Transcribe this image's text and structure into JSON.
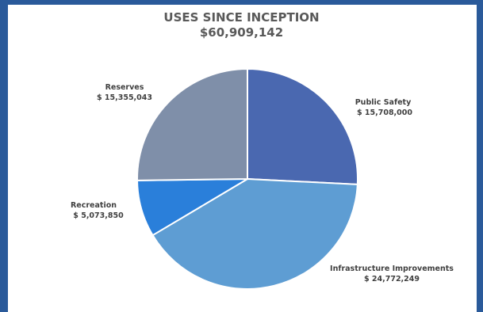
{
  "chart_data": {
    "type": "pie",
    "title": "USES SINCE INCEPTION",
    "subtitle": "$60,909,142",
    "slices": [
      {
        "label": "Public Safety",
        "value_label": "$ 15,708,000",
        "value": 15708000,
        "color": "#4a68b0"
      },
      {
        "label": "Infrastructure Improvements",
        "value_label": "$ 24,772,249",
        "value": 24772249,
        "color": "#5e9dd3"
      },
      {
        "label": "Recreation",
        "value_label": "$ 5,073,850",
        "value": 5073850,
        "color": "#2a7fda"
      },
      {
        "label": "Reserves",
        "value_label": "$ 15,355,043",
        "value": 15355043,
        "color": "#7f8fa9"
      }
    ]
  }
}
